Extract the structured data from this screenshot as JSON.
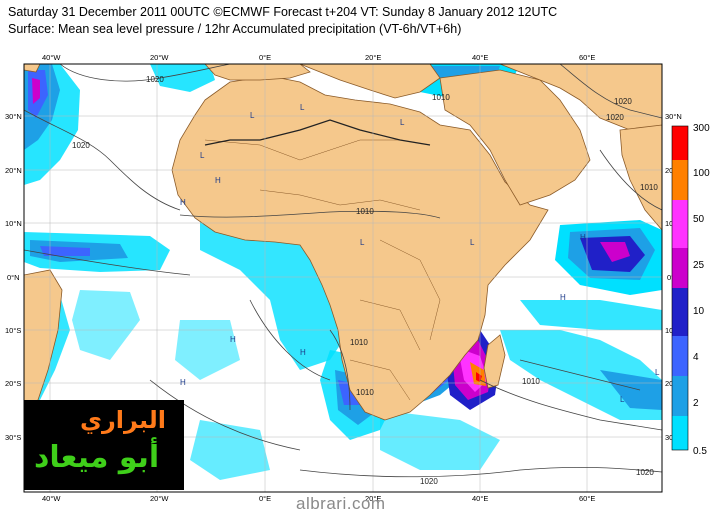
{
  "header": {
    "line1": "Saturday 31 December 2011 00UTC ©ECMWF Forecast t+204 VT: Sunday 8 January 2012 12UTC",
    "line2": "Surface: Mean sea level pressure / 12hr Accumulated precipitation (VT-6h/VT+6h)"
  },
  "map": {
    "lon_labels": [
      "40°W",
      "20°W",
      "0°E",
      "20°E",
      "40°E",
      "60°E"
    ],
    "lat_labels": [
      "30°N",
      "20°N",
      "10°N",
      "0°N",
      "10°S",
      "20°S",
      "30°S"
    ],
    "isobar_labels": [
      "1020",
      "1020",
      "1010",
      "1010",
      "1020",
      "1010",
      "1010",
      "1010",
      "1010",
      "1020",
      "1020",
      "1020"
    ],
    "pressure_centers": [
      "L",
      "H",
      "H",
      "L",
      "L",
      "L",
      "L",
      "L",
      "H",
      "H",
      "H",
      "L",
      "L",
      "H",
      "H"
    ],
    "colors": {
      "land": "#f5c88c",
      "ocean": "#ffffff",
      "coast": "#8a5a28"
    }
  },
  "legend": {
    "levels": [
      "300",
      "100",
      "50",
      "25",
      "10",
      "4",
      "2",
      "0.5"
    ],
    "colors": [
      "#ff0000",
      "#ff8000",
      "#ff33ff",
      "#cc00cc",
      "#2020c8",
      "#3c64ff",
      "#1ea0e6",
      "#00e0ff"
    ]
  },
  "logo": {
    "line1": "البراري",
    "line2": "أبو ميعاد"
  },
  "site": "albrari.com"
}
